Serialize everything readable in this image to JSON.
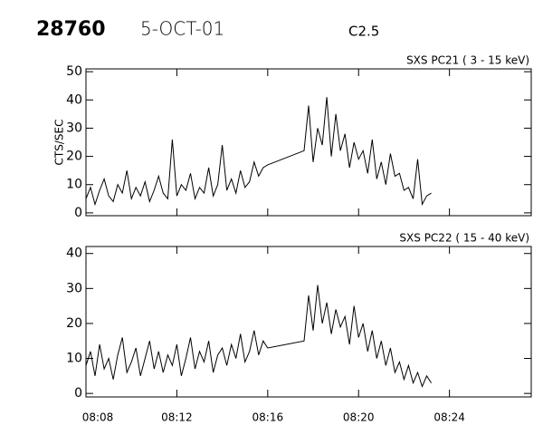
{
  "header": {
    "id": "28760",
    "date": "5-OCT-01",
    "class": "C2.5"
  },
  "chart_data": [
    {
      "type": "line",
      "title": "SXS PC21  (  3 - 15 keV)",
      "y_label": "CTS/SEC",
      "color": "#000000",
      "x": [
        8.0,
        8.2,
        8.4,
        8.6,
        8.8,
        9.0,
        9.2,
        9.4,
        9.6,
        9.8,
        10.0,
        10.2,
        10.4,
        10.6,
        10.8,
        11.0,
        11.2,
        11.4,
        11.6,
        11.8,
        12.0,
        12.2,
        12.4,
        12.6,
        12.8,
        13.0,
        13.2,
        13.4,
        13.6,
        13.8,
        14.0,
        14.2,
        14.4,
        14.6,
        14.8,
        15.0,
        15.2,
        15.4,
        15.6,
        15.8,
        16.0,
        17.6,
        17.8,
        18.0,
        18.2,
        18.4,
        18.6,
        18.8,
        19.0,
        19.2,
        19.4,
        19.6,
        19.8,
        20.0,
        20.2,
        20.4,
        20.6,
        20.8,
        21.0,
        21.2,
        21.4,
        21.6,
        21.8,
        22.0,
        22.2,
        22.4,
        22.6,
        22.8,
        23.0,
        23.2
      ],
      "values": [
        5,
        9,
        3,
        8,
        12,
        6,
        4,
        10,
        7,
        15,
        5,
        9,
        6,
        11,
        4,
        8,
        13,
        7,
        5,
        26,
        6,
        10,
        8,
        14,
        5,
        9,
        7,
        16,
        6,
        10,
        24,
        8,
        12,
        7,
        15,
        9,
        11,
        18,
        13,
        16,
        17,
        22,
        38,
        18,
        30,
        24,
        41,
        20,
        35,
        22,
        28,
        16,
        25,
        19,
        22,
        14,
        26,
        12,
        18,
        10,
        21,
        13,
        14,
        8,
        9,
        5,
        19,
        3,
        6,
        7
      ],
      "xlim": [
        8,
        27.6
      ],
      "ylim": [
        -1,
        51
      ],
      "yticks": [
        0,
        10,
        20,
        30,
        40,
        50
      ],
      "xticks": [
        {
          "value": 8,
          "label": "08:08"
        },
        {
          "value": 12,
          "label": "08:12"
        },
        {
          "value": 16,
          "label": "08:16"
        },
        {
          "value": 20,
          "label": "08:20"
        },
        {
          "value": 24,
          "label": "08:24"
        }
      ]
    },
    {
      "type": "line",
      "title": "SXS PC22  ( 15 - 40 keV)",
      "color": "#000000",
      "x": [
        8.0,
        8.2,
        8.4,
        8.6,
        8.8,
        9.0,
        9.2,
        9.4,
        9.6,
        9.8,
        10.0,
        10.2,
        10.4,
        10.6,
        10.8,
        11.0,
        11.2,
        11.4,
        11.6,
        11.8,
        12.0,
        12.2,
        12.4,
        12.6,
        12.8,
        13.0,
        13.2,
        13.4,
        13.6,
        13.8,
        14.0,
        14.2,
        14.4,
        14.6,
        14.8,
        15.0,
        15.2,
        15.4,
        15.6,
        15.8,
        16.0,
        17.6,
        17.8,
        18.0,
        18.2,
        18.4,
        18.6,
        18.8,
        19.0,
        19.2,
        19.4,
        19.6,
        19.8,
        20.0,
        20.2,
        20.4,
        20.6,
        20.8,
        21.0,
        21.2,
        21.4,
        21.6,
        21.8,
        22.0,
        22.2,
        22.4,
        22.6,
        22.8,
        23.0,
        23.2
      ],
      "values": [
        8,
        12,
        5,
        14,
        7,
        10,
        4,
        11,
        16,
        6,
        9,
        13,
        5,
        10,
        15,
        7,
        12,
        6,
        11,
        8,
        14,
        5,
        10,
        16,
        7,
        12,
        9,
        15,
        6,
        11,
        13,
        8,
        14,
        10,
        17,
        9,
        12,
        18,
        11,
        15,
        13,
        15,
        28,
        18,
        31,
        20,
        26,
        17,
        24,
        19,
        22,
        14,
        25,
        16,
        20,
        12,
        18,
        10,
        15,
        8,
        13,
        6,
        9,
        4,
        8,
        3,
        6,
        2,
        5,
        3
      ],
      "xlim": [
        8,
        27.6
      ],
      "ylim": [
        -1,
        42
      ],
      "yticks": [
        0,
        10,
        20,
        30,
        40
      ],
      "xticks": [
        {
          "value": 8,
          "label": "08:08"
        },
        {
          "value": 12,
          "label": "08:12"
        },
        {
          "value": 16,
          "label": "08:16"
        },
        {
          "value": 20,
          "label": "08:20"
        },
        {
          "value": 24,
          "label": "08:24"
        }
      ]
    }
  ]
}
